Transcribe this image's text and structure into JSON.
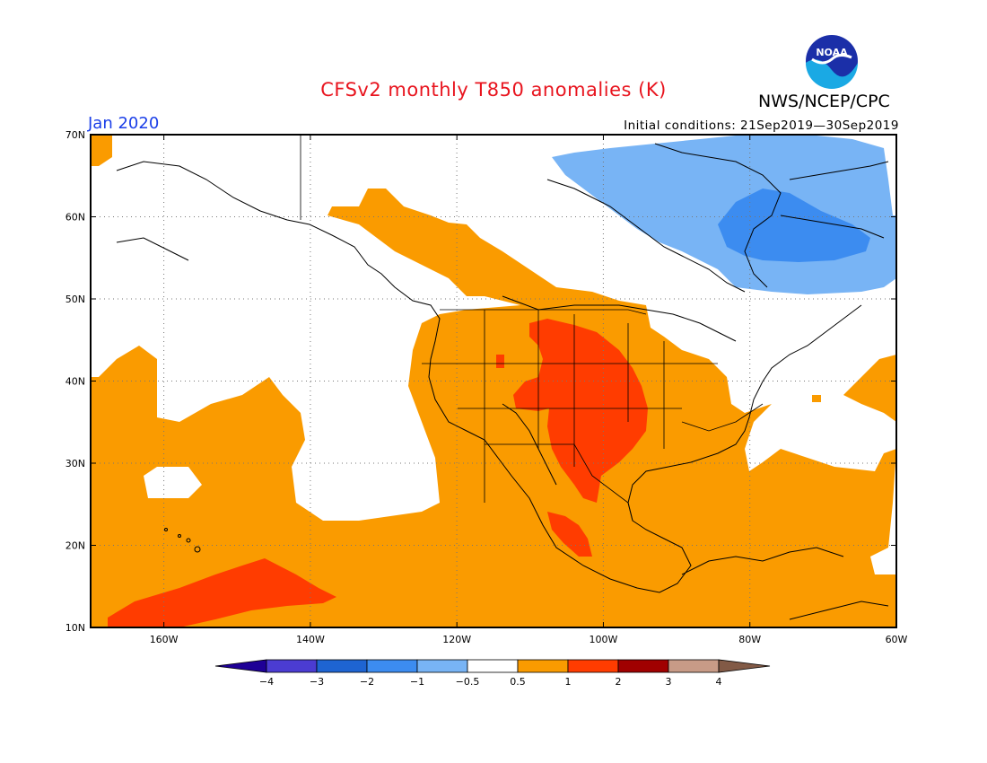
{
  "title": "CFSv2 monthly T850 anomalies (K)",
  "agency": "NWS/NCEP/CPC",
  "logo_text": "NOAA",
  "month": "Jan 2020",
  "initial_conditions": "Initial conditions: 21Sep2019—30Sep2019",
  "map_data": {
    "type": "filled-contour-map",
    "lon_range": [
      -170,
      -60
    ],
    "lat_range": [
      10,
      70
    ],
    "grid": true,
    "lat_ticks": [
      "10N",
      "20N",
      "30N",
      "40N",
      "50N",
      "60N",
      "70N"
    ],
    "lon_ticks": [
      "160W",
      "140W",
      "120W",
      "100W",
      "80W",
      "60W"
    ],
    "colorbar": {
      "levels": [
        "-4",
        "-3",
        "-2",
        "-1",
        "-0.5",
        "0.5",
        "1",
        "2",
        "3",
        "4"
      ],
      "colors": [
        "#1e0096",
        "#4b3cd2",
        "#1e64d2",
        "#3c8cf0",
        "#78b4f5",
        "#ffffff",
        "#fa9b00",
        "#ff3c00",
        "#a00000",
        "#c89b87",
        "#825a46"
      ]
    },
    "colors": {
      "warm1": "#fa9b00",
      "warm2": "#ff3c00",
      "cool1": "#78b4f5",
      "cool2": "#3c8cf0"
    }
  }
}
